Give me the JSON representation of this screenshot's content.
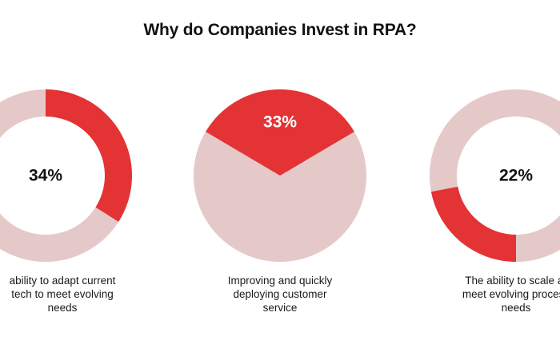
{
  "title": "Why do Companies Invest in RPA?",
  "colors": {
    "accent": "#e43335",
    "track": "#e5c9c9",
    "background": "#ffffff"
  },
  "chart_data": [
    {
      "type": "pie",
      "variant": "donut",
      "value": 34,
      "label": "34%",
      "caption_lines": [
        "ability to adapt current",
        "tech to meet evolving",
        "needs"
      ]
    },
    {
      "type": "pie",
      "variant": "pie",
      "value": 33,
      "label": "33%",
      "caption_lines": [
        "Improving and quickly",
        "deploying customer",
        "service"
      ]
    },
    {
      "type": "pie",
      "variant": "donut",
      "value": 22,
      "label": "22%",
      "caption_lines": [
        "The ability to scale ar",
        "meet evolving process",
        "needs"
      ]
    }
  ]
}
